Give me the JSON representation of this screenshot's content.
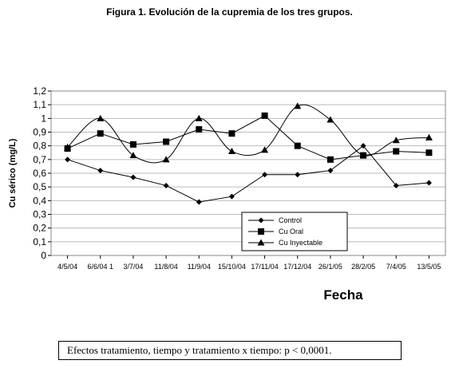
{
  "figure_title": "Figura 1. Evolución de la cupremia de los tres grupos.",
  "footnote": "Efectos tratamiento, tiempo y tratamiento x tiempo: p < 0,0001.",
  "chart_data": {
    "type": "line",
    "title": "Figura 1. Evolución de la cupremia de los tres grupos.",
    "xlabel": "Fecha",
    "ylabel": "Cu sérico (mg/L)",
    "ylim": [
      0,
      1.2
    ],
    "yticks": [
      "0",
      "0,1",
      "0,2",
      "0,3",
      "0,4",
      "0,5",
      "0,6",
      "0,7",
      "0,8",
      "0,9",
      "1",
      "1,1",
      "1,2"
    ],
    "grid": true,
    "legend_position": "bottom-right",
    "categories": [
      "4/5/04",
      "6/6/04 1",
      "3/7/04",
      "11/8/04",
      "11/9/04",
      "15/10/04",
      "17/11/04",
      "17/12/04",
      "26/1/05",
      "28/2/05",
      "7/4/05",
      "13/5/05"
    ],
    "series": [
      {
        "name": "Control",
        "marker": "diamond",
        "values": [
          0.7,
          0.62,
          0.57,
          0.51,
          0.39,
          0.43,
          0.59,
          0.59,
          0.62,
          0.8,
          0.51,
          0.53
        ]
      },
      {
        "name": "Cu Oral",
        "marker": "square",
        "values": [
          0.78,
          0.89,
          0.81,
          0.83,
          0.92,
          0.89,
          1.02,
          0.8,
          0.7,
          0.73,
          0.76,
          0.75
        ]
      },
      {
        "name": "Cu Inyectable",
        "marker": "triangle",
        "values": [
          0.79,
          1.0,
          0.73,
          0.7,
          1.0,
          0.76,
          0.77,
          1.09,
          0.99,
          0.73,
          0.84,
          0.86
        ]
      }
    ]
  }
}
